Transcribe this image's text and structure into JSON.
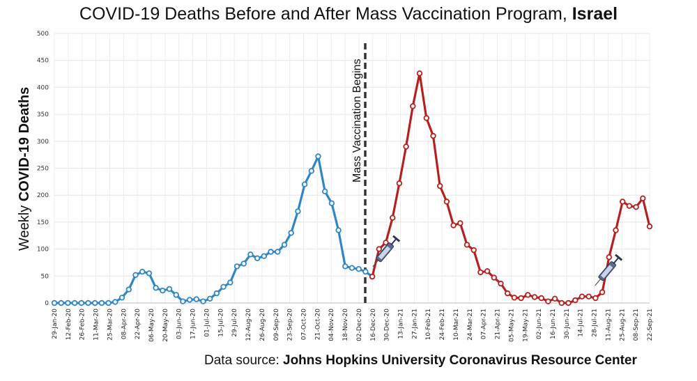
{
  "chart_data": {
    "type": "line",
    "title": "COVID-19 Deaths Before and After Mass Vaccination Program, ",
    "title_bold": "Israel",
    "ylabel_prefix": "Weekly ",
    "ylabel_bold": "COVID-19 Deaths",
    "xlabel": "",
    "ylim": [
      0,
      500
    ],
    "yticks": [
      0,
      50,
      100,
      150,
      200,
      250,
      300,
      350,
      400,
      450,
      500
    ],
    "grid": true,
    "x_tick_labels": [
      "29-Jan-20",
      "12-Feb-20",
      "26-Feb-20",
      "11-Mar-20",
      "25-Mar-20",
      "08-Apr-20",
      "22-Apr-20",
      "06-May-20",
      "20-May-20",
      "03-Jun-20",
      "17-Jun-20",
      "01-Jul-20",
      "15-Jul-20",
      "29-Jul-20",
      "12-Aug-20",
      "26-Aug-20",
      "09-Sep-20",
      "23-Sep-20",
      "07-Oct-20",
      "21-Oct-20",
      "04-Nov-20",
      "18-Nov-20",
      "02-Dec-20",
      "16-Dec-20",
      "30-Dec-20",
      "13-Jan-21",
      "27-Jan-21",
      "10-Feb-21",
      "24-Feb-21",
      "10-Mar-21",
      "24-Mar-21",
      "07-Apr-21",
      "21-Apr-21",
      "05-May-21",
      "19-May-21",
      "02-Jun-21",
      "16-Jun-21",
      "30-Jun-21",
      "14-Jul-21",
      "28-Jul-21",
      "11-Aug-21",
      "25-Aug-21",
      "08-Sep-21",
      "22-Sep-21"
    ],
    "annotation": "Mass Vaccination Begins",
    "series": [
      {
        "color": "#2f86c6",
        "values": [
          0,
          0,
          0,
          0,
          0,
          0,
          0,
          0,
          0,
          2,
          10,
          25,
          52,
          58,
          55,
          28,
          23,
          26,
          15,
          3,
          6,
          7,
          3,
          8,
          18,
          30,
          38,
          68,
          73,
          90,
          83,
          87,
          95,
          95,
          108,
          130,
          170,
          220,
          245,
          272,
          207,
          185,
          135,
          68,
          65,
          63,
          58,
          49
        ]
      },
      {
        "color": "#b5201f",
        "values": [
          49,
          100,
          112,
          158,
          222,
          290,
          365,
          426,
          343,
          310,
          217,
          188,
          144,
          148,
          108,
          98,
          57,
          59,
          47,
          36,
          18,
          10,
          9,
          15,
          11,
          9,
          3,
          8,
          0,
          0,
          5,
          12,
          12,
          9,
          20,
          85,
          135,
          188,
          180,
          178,
          194,
          142
        ]
      }
    ]
  },
  "source": {
    "prefix": "Data source: ",
    "bold": "Johns Hopkins University Coronavirus Resource Center"
  }
}
